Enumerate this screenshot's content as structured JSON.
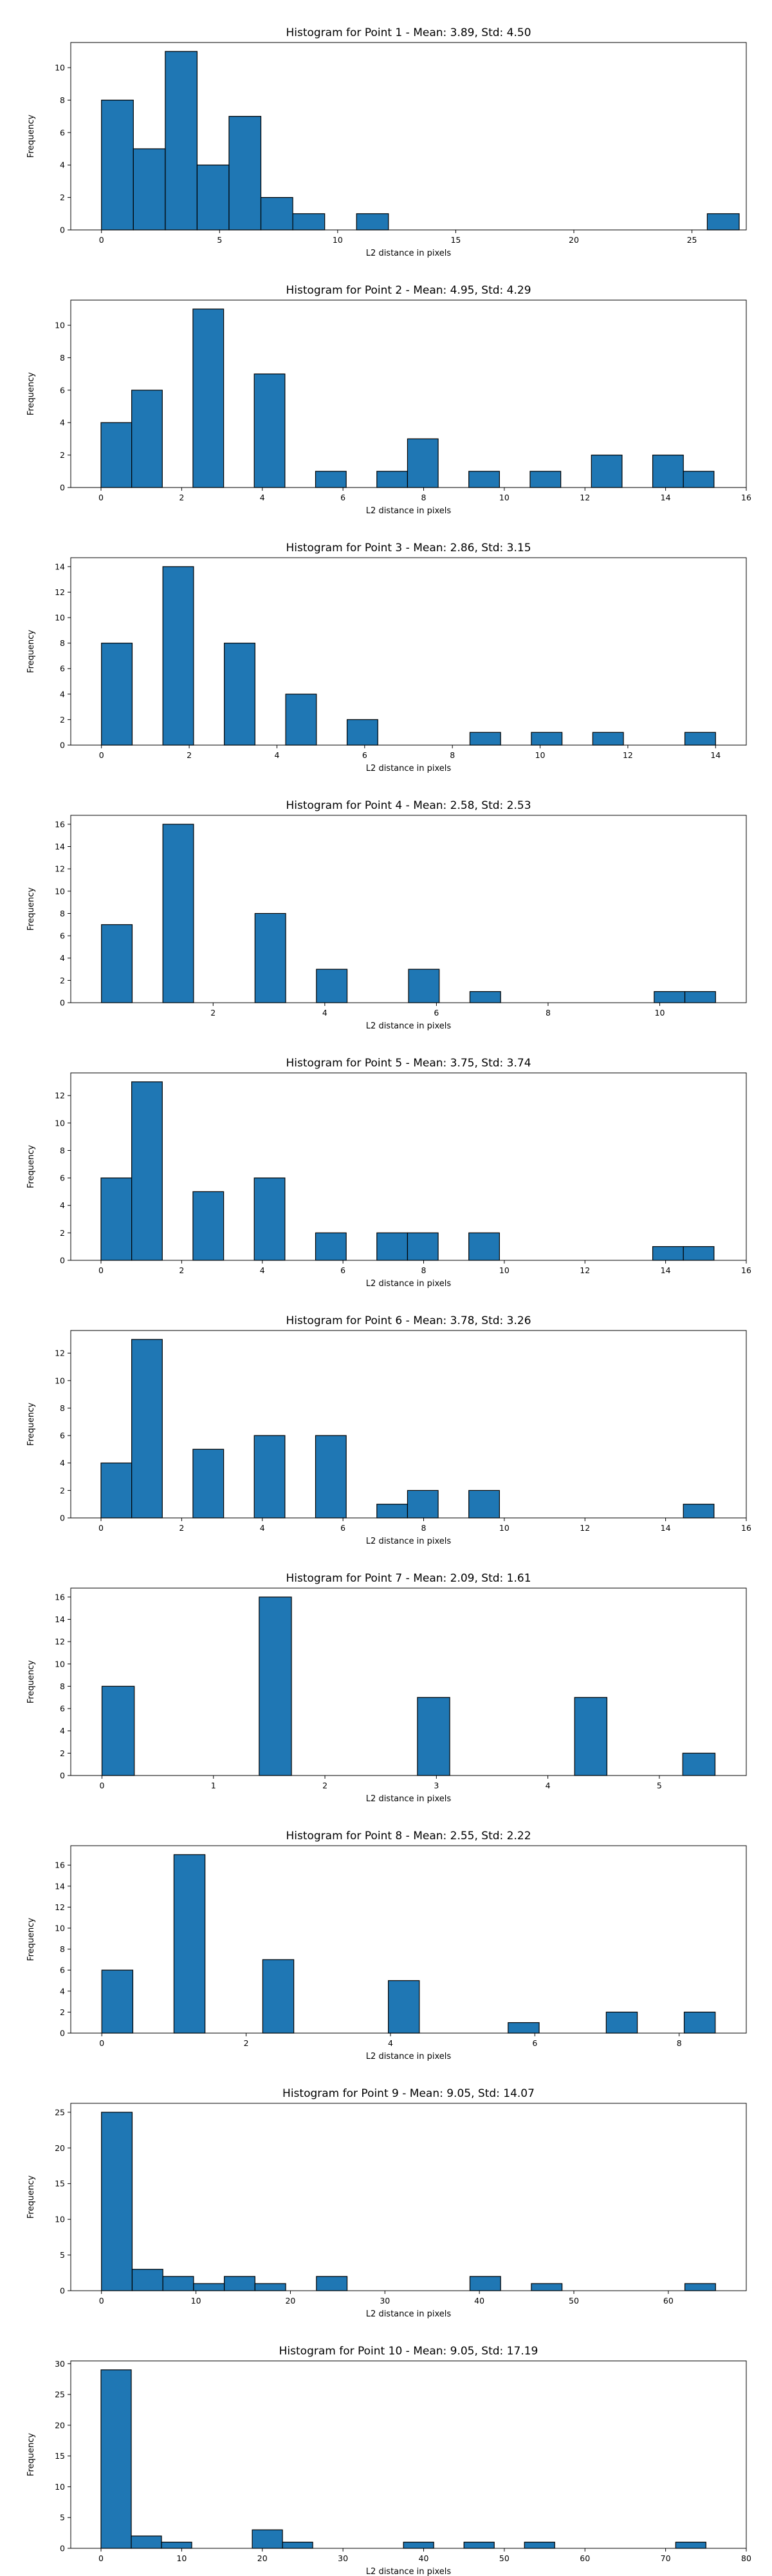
{
  "chart_data": [
    {
      "type": "bar",
      "title": "Histogram for Point 1 - Mean: 3.89, Std: 4.50",
      "xlabel": "L2 distance in pixels",
      "ylabel": "Frequency",
      "xlim": [
        -1.3,
        27.3
      ],
      "ylim": [
        0,
        11.55
      ],
      "xticks": [
        0,
        5,
        10,
        15,
        20,
        25
      ],
      "yticks": [
        0,
        2,
        4,
        6,
        8,
        10
      ],
      "bins": [
        {
          "x0": 0.0,
          "x1": 1.35,
          "count": 8
        },
        {
          "x0": 1.35,
          "x1": 2.7,
          "count": 5
        },
        {
          "x0": 2.7,
          "x1": 4.05,
          "count": 11
        },
        {
          "x0": 4.05,
          "x1": 5.4,
          "count": 4
        },
        {
          "x0": 5.4,
          "x1": 6.75,
          "count": 7
        },
        {
          "x0": 6.75,
          "x1": 8.1,
          "count": 2
        },
        {
          "x0": 8.1,
          "x1": 9.45,
          "count": 1
        },
        {
          "x0": 10.8,
          "x1": 12.15,
          "count": 1
        },
        {
          "x0": 25.65,
          "x1": 27.0,
          "count": 1
        }
      ]
    },
    {
      "type": "bar",
      "title": "Histogram for Point 2 - Mean: 4.95, Std: 4.29",
      "xlabel": "L2 distance in pixels",
      "ylabel": "Frequency",
      "xlim": [
        -0.75,
        16.0
      ],
      "ylim": [
        0,
        11.55
      ],
      "xticks": [
        0,
        2,
        4,
        6,
        8,
        10,
        12,
        14,
        16
      ],
      "yticks": [
        0,
        2,
        4,
        6,
        8,
        10
      ],
      "bins": [
        {
          "x0": 0.0,
          "x1": 0.76,
          "count": 4
        },
        {
          "x0": 0.76,
          "x1": 1.52,
          "count": 6
        },
        {
          "x0": 2.28,
          "x1": 3.04,
          "count": 11
        },
        {
          "x0": 3.8,
          "x1": 4.56,
          "count": 7
        },
        {
          "x0": 5.32,
          "x1": 6.08,
          "count": 1
        },
        {
          "x0": 6.84,
          "x1": 7.6,
          "count": 1
        },
        {
          "x0": 7.6,
          "x1": 8.36,
          "count": 3
        },
        {
          "x0": 9.12,
          "x1": 9.88,
          "count": 1
        },
        {
          "x0": 10.64,
          "x1": 11.4,
          "count": 1
        },
        {
          "x0": 12.16,
          "x1": 12.92,
          "count": 2
        },
        {
          "x0": 13.68,
          "x1": 14.44,
          "count": 2
        },
        {
          "x0": 14.44,
          "x1": 15.2,
          "count": 1
        }
      ]
    },
    {
      "type": "bar",
      "title": "Histogram for Point 3 - Mean: 2.86, Std: 3.15",
      "xlabel": "L2 distance in pixels",
      "ylabel": "Frequency",
      "xlim": [
        -0.7,
        14.7
      ],
      "ylim": [
        0,
        14.7
      ],
      "xticks": [
        0,
        2,
        4,
        6,
        8,
        10,
        12,
        14
      ],
      "yticks": [
        0,
        2,
        4,
        6,
        8,
        10,
        12,
        14
      ],
      "bins": [
        {
          "x0": 0.0,
          "x1": 0.7,
          "count": 8
        },
        {
          "x0": 1.4,
          "x1": 2.1,
          "count": 14
        },
        {
          "x0": 2.8,
          "x1": 3.5,
          "count": 8
        },
        {
          "x0": 4.2,
          "x1": 4.9,
          "count": 4
        },
        {
          "x0": 5.6,
          "x1": 6.3,
          "count": 2
        },
        {
          "x0": 8.4,
          "x1": 9.1,
          "count": 1
        },
        {
          "x0": 9.8,
          "x1": 10.5,
          "count": 1
        },
        {
          "x0": 11.2,
          "x1": 11.9,
          "count": 1
        },
        {
          "x0": 13.3,
          "x1": 14.0,
          "count": 1
        }
      ]
    },
    {
      "type": "bar",
      "title": "Histogram for Point 4 - Mean: 2.58, Std: 2.53",
      "xlabel": "L2 distance in pixels",
      "ylabel": "Frequency",
      "xlim": [
        -0.55,
        11.55
      ],
      "ylim": [
        0,
        16.8
      ],
      "xticks": [
        2,
        4,
        6,
        8,
        10
      ],
      "yticks": [
        0,
        2,
        4,
        6,
        8,
        10,
        12,
        14,
        16
      ],
      "bins": [
        {
          "x0": 0.0,
          "x1": 0.55,
          "count": 7
        },
        {
          "x0": 1.1,
          "x1": 1.65,
          "count": 16
        },
        {
          "x0": 2.75,
          "x1": 3.3,
          "count": 8
        },
        {
          "x0": 3.85,
          "x1": 4.4,
          "count": 3
        },
        {
          "x0": 5.5,
          "x1": 6.05,
          "count": 3
        },
        {
          "x0": 6.6,
          "x1": 7.15,
          "count": 1
        },
        {
          "x0": 9.9,
          "x1": 10.45,
          "count": 1
        },
        {
          "x0": 10.45,
          "x1": 11.0,
          "count": 1
        }
      ]
    },
    {
      "type": "bar",
      "title": "Histogram for Point 5 - Mean: 3.75, Std: 3.74",
      "xlabel": "L2 distance in pixels",
      "ylabel": "Frequency",
      "xlim": [
        -0.75,
        16.0
      ],
      "ylim": [
        0,
        13.65
      ],
      "xticks": [
        0,
        2,
        4,
        6,
        8,
        10,
        12,
        14,
        16
      ],
      "yticks": [
        0,
        2,
        4,
        6,
        8,
        10,
        12
      ],
      "bins": [
        {
          "x0": 0.0,
          "x1": 0.76,
          "count": 6
        },
        {
          "x0": 0.76,
          "x1": 1.52,
          "count": 13
        },
        {
          "x0": 2.28,
          "x1": 3.04,
          "count": 5
        },
        {
          "x0": 3.8,
          "x1": 4.56,
          "count": 6
        },
        {
          "x0": 5.32,
          "x1": 6.08,
          "count": 2
        },
        {
          "x0": 6.84,
          "x1": 7.6,
          "count": 2
        },
        {
          "x0": 7.6,
          "x1": 8.36,
          "count": 2
        },
        {
          "x0": 9.12,
          "x1": 9.88,
          "count": 2
        },
        {
          "x0": 13.68,
          "x1": 14.44,
          "count": 1
        },
        {
          "x0": 14.44,
          "x1": 15.2,
          "count": 1
        }
      ]
    },
    {
      "type": "bar",
      "title": "Histogram for Point 6 - Mean: 3.78, Std: 3.26",
      "xlabel": "L2 distance in pixels",
      "ylabel": "Frequency",
      "xlim": [
        -0.75,
        16.0
      ],
      "ylim": [
        0,
        13.65
      ],
      "xticks": [
        0,
        2,
        4,
        6,
        8,
        10,
        12,
        14,
        16
      ],
      "yticks": [
        0,
        2,
        4,
        6,
        8,
        10,
        12
      ],
      "bins": [
        {
          "x0": 0.0,
          "x1": 0.76,
          "count": 4
        },
        {
          "x0": 0.76,
          "x1": 1.52,
          "count": 13
        },
        {
          "x0": 2.28,
          "x1": 3.04,
          "count": 5
        },
        {
          "x0": 3.8,
          "x1": 4.56,
          "count": 6
        },
        {
          "x0": 5.32,
          "x1": 6.08,
          "count": 6
        },
        {
          "x0": 6.84,
          "x1": 7.6,
          "count": 1
        },
        {
          "x0": 7.6,
          "x1": 8.36,
          "count": 2
        },
        {
          "x0": 9.12,
          "x1": 9.88,
          "count": 2
        },
        {
          "x0": 14.44,
          "x1": 15.2,
          "count": 1
        }
      ]
    },
    {
      "type": "bar",
      "title": "Histogram for Point 7 - Mean: 2.09, Std: 1.61",
      "xlabel": "L2 distance in pixels",
      "ylabel": "Frequency",
      "xlim": [
        -0.28,
        5.78
      ],
      "ylim": [
        0,
        16.8
      ],
      "xticks": [
        0,
        1,
        2,
        3,
        4,
        5
      ],
      "yticks": [
        0,
        2,
        4,
        6,
        8,
        10,
        12,
        14,
        16
      ],
      "bins": [
        {
          "x0": 0.0,
          "x1": 0.29,
          "count": 8
        },
        {
          "x0": 1.41,
          "x1": 1.7,
          "count": 16
        },
        {
          "x0": 2.83,
          "x1": 3.12,
          "count": 7
        },
        {
          "x0": 4.24,
          "x1": 4.53,
          "count": 7
        },
        {
          "x0": 5.21,
          "x1": 5.5,
          "count": 2
        }
      ]
    },
    {
      "type": "bar",
      "title": "Histogram for Point 8 - Mean: 2.55, Std: 2.22",
      "xlabel": "L2 distance in pixels",
      "ylabel": "Frequency",
      "xlim": [
        -0.43,
        8.93
      ],
      "ylim": [
        0,
        17.85
      ],
      "xticks": [
        0,
        2,
        4,
        6,
        8
      ],
      "yticks": [
        0,
        2,
        4,
        6,
        8,
        10,
        12,
        14,
        16
      ],
      "bins": [
        {
          "x0": 0.0,
          "x1": 0.43,
          "count": 6
        },
        {
          "x0": 1.0,
          "x1": 1.43,
          "count": 17
        },
        {
          "x0": 2.23,
          "x1": 2.66,
          "count": 7
        },
        {
          "x0": 3.97,
          "x1": 4.4,
          "count": 5
        },
        {
          "x0": 5.63,
          "x1": 6.06,
          "count": 1
        },
        {
          "x0": 6.99,
          "x1": 7.42,
          "count": 2
        },
        {
          "x0": 8.07,
          "x1": 8.5,
          "count": 2
        }
      ]
    },
    {
      "type": "bar",
      "title": "Histogram for Point 9 - Mean: 9.05, Std: 14.07",
      "xlabel": "L2 distance in pixels",
      "ylabel": "Frequency",
      "xlim": [
        -3.25,
        68.25
      ],
      "ylim": [
        0,
        26.25
      ],
      "xticks": [
        0,
        10,
        20,
        30,
        40,
        50,
        60
      ],
      "yticks": [
        0,
        5,
        10,
        15,
        20,
        25
      ],
      "bins": [
        {
          "x0": 0.0,
          "x1": 3.25,
          "count": 25
        },
        {
          "x0": 3.25,
          "x1": 6.5,
          "count": 3
        },
        {
          "x0": 6.5,
          "x1": 9.75,
          "count": 2
        },
        {
          "x0": 9.75,
          "x1": 13.0,
          "count": 1
        },
        {
          "x0": 13.0,
          "x1": 16.25,
          "count": 2
        },
        {
          "x0": 16.25,
          "x1": 19.5,
          "count": 1
        },
        {
          "x0": 22.75,
          "x1": 26.0,
          "count": 2
        },
        {
          "x0": 39.0,
          "x1": 42.25,
          "count": 2
        },
        {
          "x0": 45.5,
          "x1": 48.75,
          "count": 1
        },
        {
          "x0": 61.75,
          "x1": 65.0,
          "count": 1
        }
      ]
    },
    {
      "type": "bar",
      "title": "Histogram for Point 10 - Mean: 9.05, Std: 17.19",
      "xlabel": "L2 distance in pixels",
      "ylabel": "Frequency",
      "xlim": [
        -3.75,
        80.0
      ],
      "ylim": [
        0,
        30.45
      ],
      "xticks": [
        0,
        10,
        20,
        30,
        40,
        50,
        60,
        70,
        80
      ],
      "yticks": [
        0,
        5,
        10,
        15,
        20,
        25,
        30
      ],
      "bins": [
        {
          "x0": 0.0,
          "x1": 3.75,
          "count": 29
        },
        {
          "x0": 3.75,
          "x1": 7.5,
          "count": 2
        },
        {
          "x0": 7.5,
          "x1": 11.25,
          "count": 1
        },
        {
          "x0": 18.75,
          "x1": 22.5,
          "count": 3
        },
        {
          "x0": 22.5,
          "x1": 26.25,
          "count": 1
        },
        {
          "x0": 37.5,
          "x1": 41.25,
          "count": 1
        },
        {
          "x0": 45.0,
          "x1": 48.75,
          "count": 1
        },
        {
          "x0": 52.5,
          "x1": 56.25,
          "count": 1
        },
        {
          "x0": 71.25,
          "x1": 75.0,
          "count": 1
        }
      ]
    }
  ]
}
